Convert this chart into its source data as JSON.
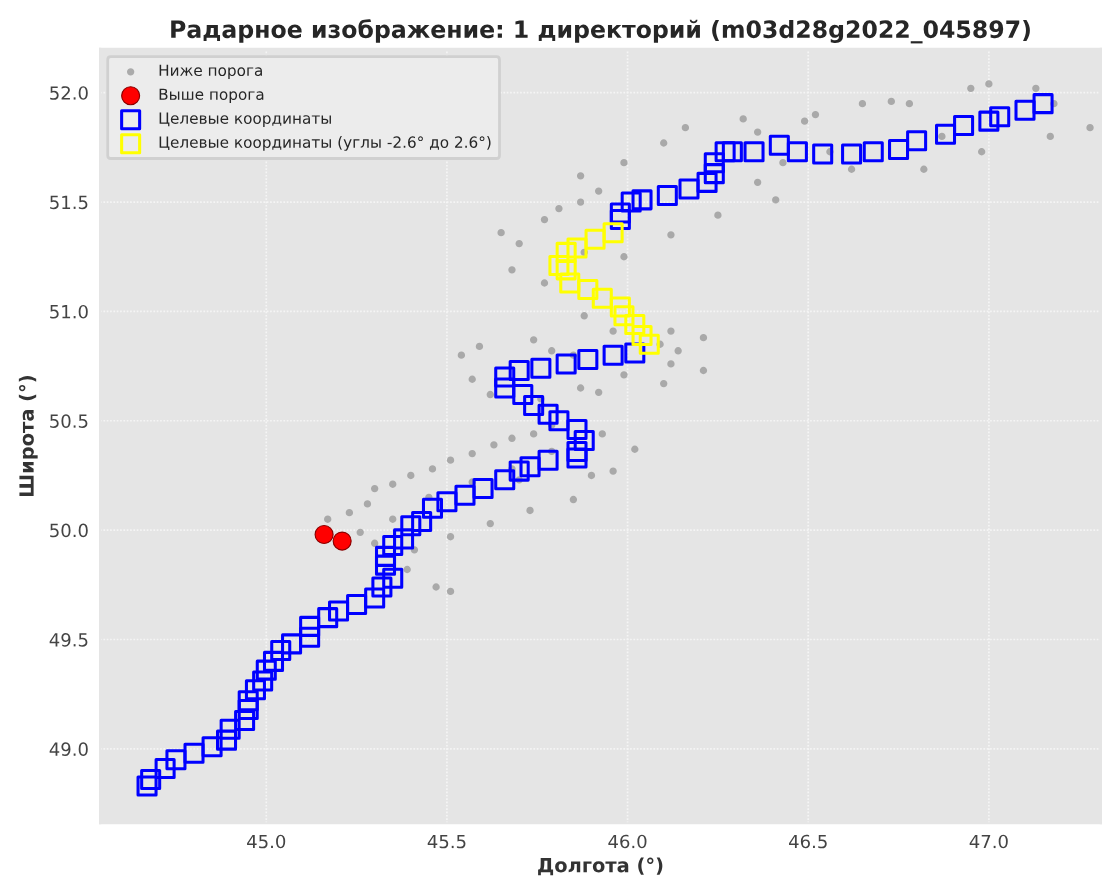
{
  "chart_data": {
    "type": "scatter",
    "title": "Радарное изображение: 1 директорий (m03d28g2022_045897)",
    "xlabel": "Долгота (°)",
    "ylabel": "Широта (°)",
    "xlim": [
      44.54,
      47.31
    ],
    "ylim": [
      48.66,
      52.2
    ],
    "xticks": [
      {
        "value": 45.0,
        "label": "45.0"
      },
      {
        "value": 45.5,
        "label": "45.5"
      },
      {
        "value": 46.0,
        "label": "46.0"
      },
      {
        "value": 46.5,
        "label": "46.5"
      },
      {
        "value": 47.0,
        "label": "47.0"
      }
    ],
    "yticks": [
      {
        "value": 49.0,
        "label": "49.0"
      },
      {
        "value": 49.5,
        "label": "49.5"
      },
      {
        "value": 50.0,
        "label": "50.0"
      },
      {
        "value": 50.5,
        "label": "50.5"
      },
      {
        "value": 51.0,
        "label": "51.0"
      },
      {
        "value": 51.5,
        "label": "51.5"
      },
      {
        "value": 52.0,
        "label": "52.0"
      }
    ],
    "grid": true,
    "legend": "top left",
    "series": [
      {
        "name": "Ниже порога",
        "color": "#808080",
        "marker": "circle",
        "x": [
          45.17,
          45.23,
          45.28,
          45.3,
          45.35,
          45.4,
          45.46,
          45.51,
          45.57,
          45.63,
          45.68,
          45.74,
          45.79,
          45.26,
          45.35,
          45.45,
          45.57,
          45.68,
          45.79,
          45.93,
          46.02,
          45.96,
          45.85,
          45.73,
          45.62,
          45.51,
          45.41,
          45.39,
          45.47,
          45.51,
          45.3,
          45.7,
          45.9,
          45.54,
          45.59,
          45.57,
          45.62,
          45.74,
          45.85,
          45.99,
          46.1,
          46.21,
          46.12,
          45.76,
          45.87,
          45.92,
          46.09,
          45.65,
          45.7,
          45.68,
          45.77,
          45.87,
          45.87,
          45.99,
          46.1,
          46.16,
          46.32,
          46.49,
          46.65,
          46.78,
          46.95,
          47.0,
          47.13,
          47.18,
          47.28,
          47.17,
          46.98,
          46.82,
          46.62,
          46.43,
          46.36,
          46.41,
          46.25,
          46.12,
          45.99,
          45.88,
          45.77,
          45.88,
          45.96,
          45.79,
          46.14,
          46.21,
          46.12,
          46.56,
          46.87,
          46.73,
          46.52,
          46.36,
          45.92,
          45.81
        ],
        "values": [
          50.05,
          50.08,
          50.12,
          50.19,
          50.21,
          50.25,
          50.28,
          50.32,
          50.35,
          50.39,
          50.42,
          50.44,
          50.48,
          49.99,
          50.05,
          50.15,
          50.22,
          50.28,
          50.36,
          50.44,
          50.37,
          50.27,
          50.14,
          50.09,
          50.03,
          49.97,
          49.91,
          49.82,
          49.74,
          49.72,
          49.94,
          50.23,
          50.25,
          50.8,
          50.84,
          50.69,
          50.62,
          50.87,
          50.8,
          50.71,
          50.67,
          50.73,
          50.76,
          50.6,
          50.65,
          50.63,
          50.85,
          51.36,
          51.31,
          51.19,
          51.42,
          51.5,
          51.62,
          51.68,
          51.77,
          51.84,
          51.88,
          51.87,
          51.95,
          51.95,
          52.02,
          52.04,
          52.02,
          51.95,
          51.84,
          51.8,
          51.73,
          51.65,
          51.65,
          51.68,
          51.59,
          51.51,
          51.44,
          51.35,
          51.25,
          51.27,
          51.13,
          50.98,
          50.91,
          50.82,
          50.82,
          50.88,
          50.91,
          51.73,
          51.8,
          51.96,
          51.9,
          51.82,
          51.55,
          51.47
        ]
      },
      {
        "name": "Выше порога",
        "color": "#ff0000",
        "marker": "circle",
        "x": [
          45.16,
          45.21
        ],
        "values": [
          49.98,
          49.95
        ]
      },
      {
        "name": "Целевые координаты",
        "color": "#0000ff",
        "marker": "square",
        "x": [
          44.67,
          44.68,
          44.72,
          44.75,
          44.8,
          44.85,
          44.89,
          44.9,
          44.94,
          44.95,
          44.95,
          44.97,
          44.99,
          45.0,
          45.02,
          45.04,
          45.07,
          45.12,
          45.12,
          45.17,
          45.2,
          45.25,
          45.3,
          45.32,
          45.35,
          45.33,
          45.33,
          45.35,
          45.38,
          45.4,
          45.43,
          45.46,
          45.5,
          45.55,
          45.6,
          45.66,
          45.7,
          45.73,
          45.78,
          45.86,
          45.86,
          45.88,
          45.86,
          45.81,
          45.78,
          45.74,
          45.71,
          45.66,
          45.66,
          45.7,
          45.76,
          45.83,
          45.89,
          45.96,
          46.02,
          45.98,
          45.98,
          46.01,
          46.04,
          46.11,
          46.17,
          46.22,
          46.24,
          46.24,
          46.27,
          46.29,
          46.35,
          46.42,
          46.47,
          46.54,
          46.62,
          46.68,
          46.75,
          46.8,
          46.88,
          46.93,
          47.0,
          47.03,
          47.1,
          47.15
        ],
        "values": [
          48.83,
          48.86,
          48.91,
          48.95,
          48.98,
          49.01,
          49.04,
          49.09,
          49.13,
          49.18,
          49.22,
          49.27,
          49.31,
          49.36,
          49.4,
          49.45,
          49.48,
          49.51,
          49.56,
          49.6,
          49.63,
          49.66,
          49.69,
          49.74,
          49.78,
          49.84,
          49.88,
          49.93,
          49.96,
          50.02,
          50.04,
          50.1,
          50.13,
          50.16,
          50.19,
          50.23,
          50.27,
          50.29,
          50.32,
          50.33,
          50.36,
          50.41,
          50.46,
          50.5,
          50.53,
          50.57,
          50.62,
          50.65,
          50.7,
          50.73,
          50.74,
          50.76,
          50.78,
          50.8,
          50.81,
          51.42,
          51.45,
          51.5,
          51.51,
          51.53,
          51.56,
          51.59,
          51.63,
          51.68,
          51.73,
          51.73,
          51.73,
          51.76,
          51.73,
          51.72,
          51.72,
          51.73,
          51.74,
          51.78,
          51.81,
          51.85,
          51.87,
          51.89,
          51.92,
          51.95
        ]
      },
      {
        "name": "Целевые координаты (углы -2.6° до 2.6°)",
        "color": "#ffff00",
        "marker": "square",
        "x": [
          46.06,
          46.04,
          46.02,
          45.99,
          45.98,
          45.93,
          45.89,
          45.84,
          45.83,
          45.81,
          45.83,
          45.86,
          45.91,
          45.96
        ],
        "values": [
          50.85,
          50.89,
          50.94,
          50.98,
          51.02,
          51.06,
          51.1,
          51.13,
          51.19,
          51.21,
          51.27,
          51.29,
          51.33,
          51.36
        ]
      }
    ]
  }
}
